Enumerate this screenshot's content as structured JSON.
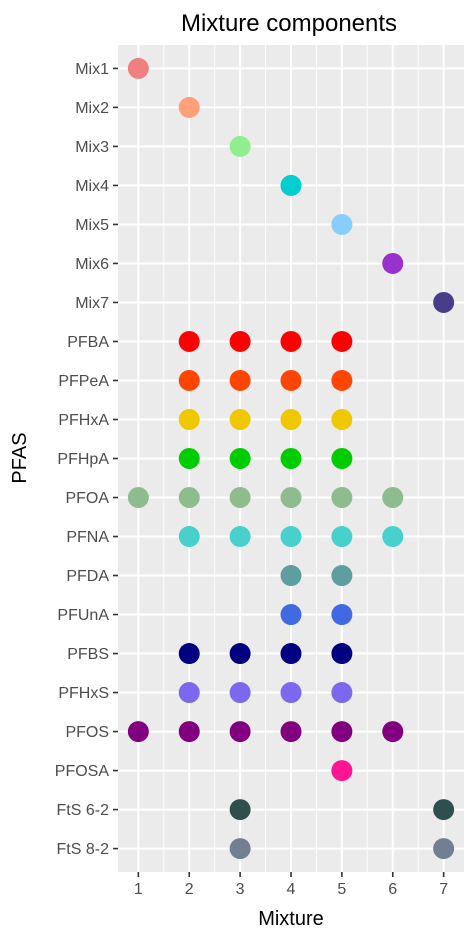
{
  "chart_data": {
    "type": "scatter",
    "title": "Mixture components",
    "xlabel": "Mixture",
    "ylabel": "PFAS",
    "x_ticks": [
      1,
      2,
      3,
      4,
      5,
      6,
      7
    ],
    "xlim": [
      0.6,
      7.4
    ],
    "grid": true,
    "legend": "none",
    "categories": [
      "Mix1",
      "Mix2",
      "Mix3",
      "Mix4",
      "Mix5",
      "Mix6",
      "Mix7",
      "PFBA",
      "PFPeA",
      "PFHxA",
      "PFHpA",
      "PFOA",
      "PFNA",
      "PFDA",
      "PFUnA",
      "PFBS",
      "PFHxS",
      "PFOS",
      "PFOSA",
      "FtS 6-2",
      "FtS 8-2"
    ],
    "colors": {
      "Mix1": "#f08080",
      "Mix2": "#ffa07a",
      "Mix3": "#90ee90",
      "Mix4": "#00ced1",
      "Mix5": "#87cefa",
      "Mix6": "#9932cc",
      "Mix7": "#483d8b",
      "PFBA": "#ff0000",
      "PFPeA": "#ff4500",
      "PFHxA": "#f0c800",
      "PFHpA": "#00cd00",
      "PFOA": "#8fbc8f",
      "PFNA": "#48d1cc",
      "PFDA": "#5f9ea0",
      "PFUnA": "#4169e1",
      "PFBS": "#000080",
      "PFHxS": "#7b68ee",
      "PFOS": "#800080",
      "PFOSA": "#ff1493",
      "FtS 6-2": "#2f4f4f",
      "FtS 8-2": "#708090"
    },
    "points": [
      {
        "y": "Mix1",
        "x": 1
      },
      {
        "y": "Mix2",
        "x": 2
      },
      {
        "y": "Mix3",
        "x": 3
      },
      {
        "y": "Mix4",
        "x": 4
      },
      {
        "y": "Mix5",
        "x": 5
      },
      {
        "y": "Mix6",
        "x": 6
      },
      {
        "y": "Mix7",
        "x": 7
      },
      {
        "y": "PFBA",
        "x": 2
      },
      {
        "y": "PFBA",
        "x": 3
      },
      {
        "y": "PFBA",
        "x": 4
      },
      {
        "y": "PFBA",
        "x": 5
      },
      {
        "y": "PFPeA",
        "x": 2
      },
      {
        "y": "PFPeA",
        "x": 3
      },
      {
        "y": "PFPeA",
        "x": 4
      },
      {
        "y": "PFPeA",
        "x": 5
      },
      {
        "y": "PFHxA",
        "x": 2
      },
      {
        "y": "PFHxA",
        "x": 3
      },
      {
        "y": "PFHxA",
        "x": 4
      },
      {
        "y": "PFHxA",
        "x": 5
      },
      {
        "y": "PFHpA",
        "x": 2
      },
      {
        "y": "PFHpA",
        "x": 3
      },
      {
        "y": "PFHpA",
        "x": 4
      },
      {
        "y": "PFHpA",
        "x": 5
      },
      {
        "y": "PFOA",
        "x": 1
      },
      {
        "y": "PFOA",
        "x": 2
      },
      {
        "y": "PFOA",
        "x": 3
      },
      {
        "y": "PFOA",
        "x": 4
      },
      {
        "y": "PFOA",
        "x": 5
      },
      {
        "y": "PFOA",
        "x": 6
      },
      {
        "y": "PFNA",
        "x": 2
      },
      {
        "y": "PFNA",
        "x": 3
      },
      {
        "y": "PFNA",
        "x": 4
      },
      {
        "y": "PFNA",
        "x": 5
      },
      {
        "y": "PFNA",
        "x": 6
      },
      {
        "y": "PFDA",
        "x": 4
      },
      {
        "y": "PFDA",
        "x": 5
      },
      {
        "y": "PFUnA",
        "x": 4
      },
      {
        "y": "PFUnA",
        "x": 5
      },
      {
        "y": "PFBS",
        "x": 2
      },
      {
        "y": "PFBS",
        "x": 3
      },
      {
        "y": "PFBS",
        "x": 4
      },
      {
        "y": "PFBS",
        "x": 5
      },
      {
        "y": "PFHxS",
        "x": 2
      },
      {
        "y": "PFHxS",
        "x": 3
      },
      {
        "y": "PFHxS",
        "x": 4
      },
      {
        "y": "PFHxS",
        "x": 5
      },
      {
        "y": "PFOS",
        "x": 1
      },
      {
        "y": "PFOS",
        "x": 2
      },
      {
        "y": "PFOS",
        "x": 3
      },
      {
        "y": "PFOS",
        "x": 4
      },
      {
        "y": "PFOS",
        "x": 5
      },
      {
        "y": "PFOS",
        "x": 6
      },
      {
        "y": "PFOSA",
        "x": 5
      },
      {
        "y": "FtS 6-2",
        "x": 3
      },
      {
        "y": "FtS 6-2",
        "x": 7
      },
      {
        "y": "FtS 8-2",
        "x": 3
      },
      {
        "y": "FtS 8-2",
        "x": 7
      }
    ]
  }
}
